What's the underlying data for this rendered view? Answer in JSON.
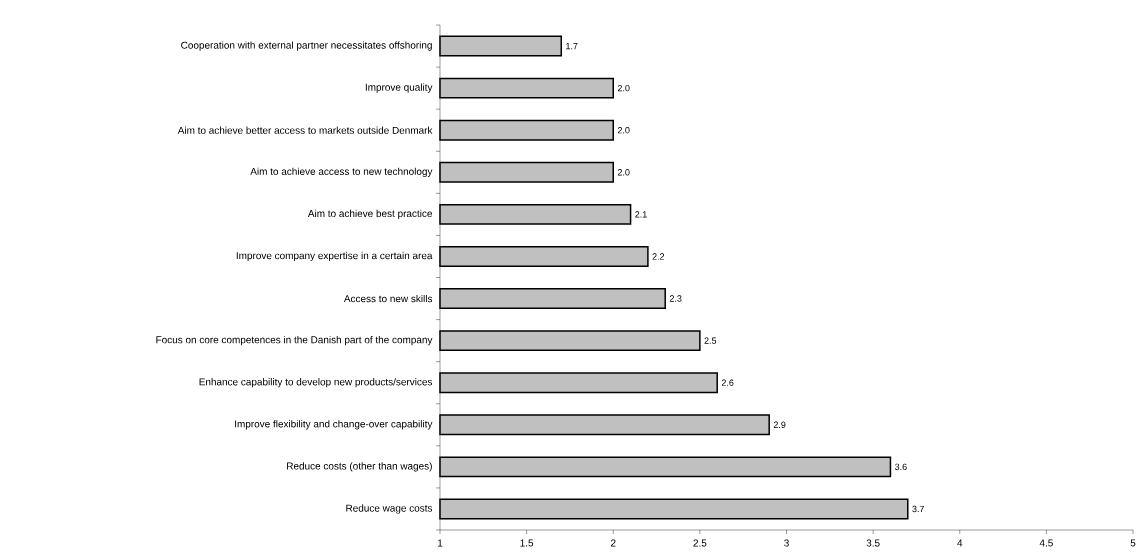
{
  "chart_data": {
    "type": "bar",
    "orientation": "horizontal",
    "categories": [
      "Cooperation with external partner necessitates offshoring",
      "Improve quality",
      "Aim to achieve better access to markets outside Denmark",
      "Aim to achieve access to new technology",
      "Aim to achieve best practice",
      "Improve company expertise in a certain area",
      "Access to new skills",
      "Focus on core competences in the Danish part of the company",
      "Enhance capability to develop new products/services",
      "Improve flexibility and change-over capability",
      "Reduce costs (other than wages)",
      "Reduce wage costs"
    ],
    "values": [
      1.7,
      2.0,
      2.0,
      2.0,
      2.1,
      2.2,
      2.3,
      2.5,
      2.6,
      2.9,
      3.6,
      3.7
    ],
    "value_labels": [
      "1.7",
      "2.0",
      "2.0",
      "2.0",
      "2.1",
      "2.2",
      "2.3",
      "2.5",
      "2.6",
      "2.9",
      "3.6",
      "3.7"
    ],
    "color": "#c0c0c0",
    "xlim": [
      1,
      5
    ],
    "xticks": [
      1,
      1.5,
      2,
      2.5,
      3,
      3.5,
      4,
      4.5,
      5
    ],
    "grid": false
  }
}
